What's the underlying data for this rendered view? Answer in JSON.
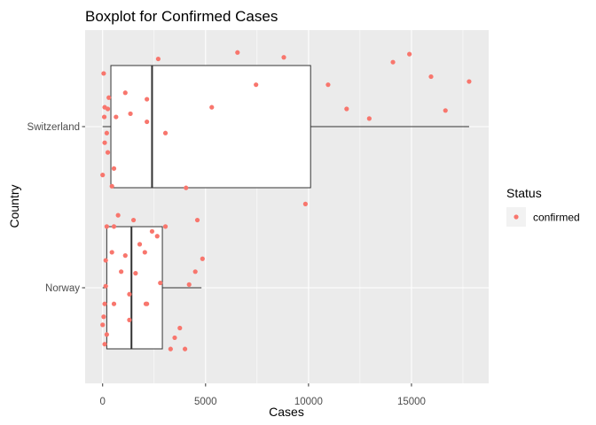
{
  "chart_data": {
    "type": "boxplot",
    "title": "Boxplot for Confirmed Cases",
    "xlabel": "Cases",
    "ylabel": "Country",
    "xlim": [
      -850,
      18750
    ],
    "x_ticks": [
      0,
      5000,
      10000,
      15000
    ],
    "x_tick_labels": [
      "0",
      "5000",
      "10000",
      "15000"
    ],
    "categories": [
      "Norway",
      "Switzerland"
    ],
    "grid": true,
    "panel_background": "#ebebeb",
    "point_color": "#f8766d",
    "legend": {
      "title": "Status",
      "entries": [
        "confirmed"
      ],
      "position": "right"
    },
    "boxes": [
      {
        "category": "Switzerland",
        "lower_whisker": 0,
        "q1": 400,
        "median": 2400,
        "q3": 10100,
        "upper_whisker": 17800
      },
      {
        "category": "Norway",
        "lower_whisker": 0,
        "q1": 200,
        "median": 1400,
        "q3": 2900,
        "upper_whisker": 4800
      }
    ],
    "points": [
      {
        "category": "Switzerland",
        "x": 50,
        "jitter": 0.33
      },
      {
        "category": "Switzerland",
        "x": 300,
        "jitter": 0.18
      },
      {
        "category": "Switzerland",
        "x": 100,
        "jitter": 0.12
      },
      {
        "category": "Switzerland",
        "x": 250,
        "jitter": 0.11
      },
      {
        "category": "Switzerland",
        "x": 650,
        "jitter": 0.06
      },
      {
        "category": "Switzerland",
        "x": 80,
        "jitter": 0.06
      },
      {
        "category": "Switzerland",
        "x": 200,
        "jitter": -0.04
      },
      {
        "category": "Switzerland",
        "x": 100,
        "jitter": -0.1
      },
      {
        "category": "Switzerland",
        "x": 250,
        "jitter": -0.16
      },
      {
        "category": "Switzerland",
        "x": 550,
        "jitter": -0.26
      },
      {
        "category": "Switzerland",
        "x": 0,
        "jitter": -0.3
      },
      {
        "category": "Switzerland",
        "x": 450,
        "jitter": -0.37
      },
      {
        "category": "Switzerland",
        "x": 1100,
        "jitter": 0.21
      },
      {
        "category": "Switzerland",
        "x": 1350,
        "jitter": 0.08
      },
      {
        "category": "Switzerland",
        "x": 2150,
        "jitter": 0.17
      },
      {
        "category": "Switzerland",
        "x": 2150,
        "jitter": 0.03
      },
      {
        "category": "Switzerland",
        "x": 2700,
        "jitter": 0.42
      },
      {
        "category": "Switzerland",
        "x": 3050,
        "jitter": -0.04
      },
      {
        "category": "Switzerland",
        "x": 4050,
        "jitter": -0.38
      },
      {
        "category": "Switzerland",
        "x": 5300,
        "jitter": 0.12
      },
      {
        "category": "Switzerland",
        "x": 6550,
        "jitter": 0.46
      },
      {
        "category": "Switzerland",
        "x": 7450,
        "jitter": 0.26
      },
      {
        "category": "Switzerland",
        "x": 8800,
        "jitter": 0.43
      },
      {
        "category": "Switzerland",
        "x": 9850,
        "jitter": -0.48
      },
      {
        "category": "Switzerland",
        "x": 10950,
        "jitter": 0.26
      },
      {
        "category": "Switzerland",
        "x": 11850,
        "jitter": 0.11
      },
      {
        "category": "Switzerland",
        "x": 12950,
        "jitter": 0.05
      },
      {
        "category": "Switzerland",
        "x": 14100,
        "jitter": 0.4
      },
      {
        "category": "Switzerland",
        "x": 14900,
        "jitter": 0.45
      },
      {
        "category": "Switzerland",
        "x": 15950,
        "jitter": 0.31
      },
      {
        "category": "Switzerland",
        "x": 16650,
        "jitter": 0.1
      },
      {
        "category": "Switzerland",
        "x": 17800,
        "jitter": 0.28
      },
      {
        "category": "Norway",
        "x": 750,
        "jitter": 0.45
      },
      {
        "category": "Norway",
        "x": 200,
        "jitter": 0.38
      },
      {
        "category": "Norway",
        "x": 550,
        "jitter": 0.38
      },
      {
        "category": "Norway",
        "x": 1500,
        "jitter": 0.42
      },
      {
        "category": "Norway",
        "x": 3050,
        "jitter": 0.38
      },
      {
        "category": "Norway",
        "x": 2400,
        "jitter": 0.35
      },
      {
        "category": "Norway",
        "x": 2650,
        "jitter": 0.32
      },
      {
        "category": "Norway",
        "x": 4600,
        "jitter": 0.42
      },
      {
        "category": "Norway",
        "x": 1100,
        "jitter": 0.2
      },
      {
        "category": "Norway",
        "x": 1800,
        "jitter": 0.27
      },
      {
        "category": "Norway",
        "x": 2050,
        "jitter": 0.22
      },
      {
        "category": "Norway",
        "x": 4850,
        "jitter": 0.18
      },
      {
        "category": "Norway",
        "x": 450,
        "jitter": 0.22
      },
      {
        "category": "Norway",
        "x": 150,
        "jitter": 0.17
      },
      {
        "category": "Norway",
        "x": 900,
        "jitter": 0.1
      },
      {
        "category": "Norway",
        "x": 1600,
        "jitter": 0.09
      },
      {
        "category": "Norway",
        "x": 4500,
        "jitter": 0.1
      },
      {
        "category": "Norway",
        "x": 4200,
        "jitter": 0.02
      },
      {
        "category": "Norway",
        "x": 2800,
        "jitter": 0.03
      },
      {
        "category": "Norway",
        "x": 150,
        "jitter": 0.01
      },
      {
        "category": "Norway",
        "x": 1300,
        "jitter": -0.04
      },
      {
        "category": "Norway",
        "x": 100,
        "jitter": -0.1
      },
      {
        "category": "Norway",
        "x": 550,
        "jitter": -0.1
      },
      {
        "category": "Norway",
        "x": 2100,
        "jitter": -0.1
      },
      {
        "category": "Norway",
        "x": 50,
        "jitter": -0.18
      },
      {
        "category": "Norway",
        "x": 1300,
        "jitter": -0.2
      },
      {
        "category": "Norway",
        "x": 0,
        "jitter": -0.23
      },
      {
        "category": "Norway",
        "x": 3750,
        "jitter": -0.25
      },
      {
        "category": "Norway",
        "x": 200,
        "jitter": -0.29
      },
      {
        "category": "Norway",
        "x": 3500,
        "jitter": -0.31
      },
      {
        "category": "Norway",
        "x": 100,
        "jitter": -0.35
      },
      {
        "category": "Norway",
        "x": 3300,
        "jitter": -0.38
      },
      {
        "category": "Norway",
        "x": 4000,
        "jitter": -0.38
      },
      {
        "category": "Norway",
        "x": 2150,
        "jitter": -0.1
      }
    ]
  }
}
